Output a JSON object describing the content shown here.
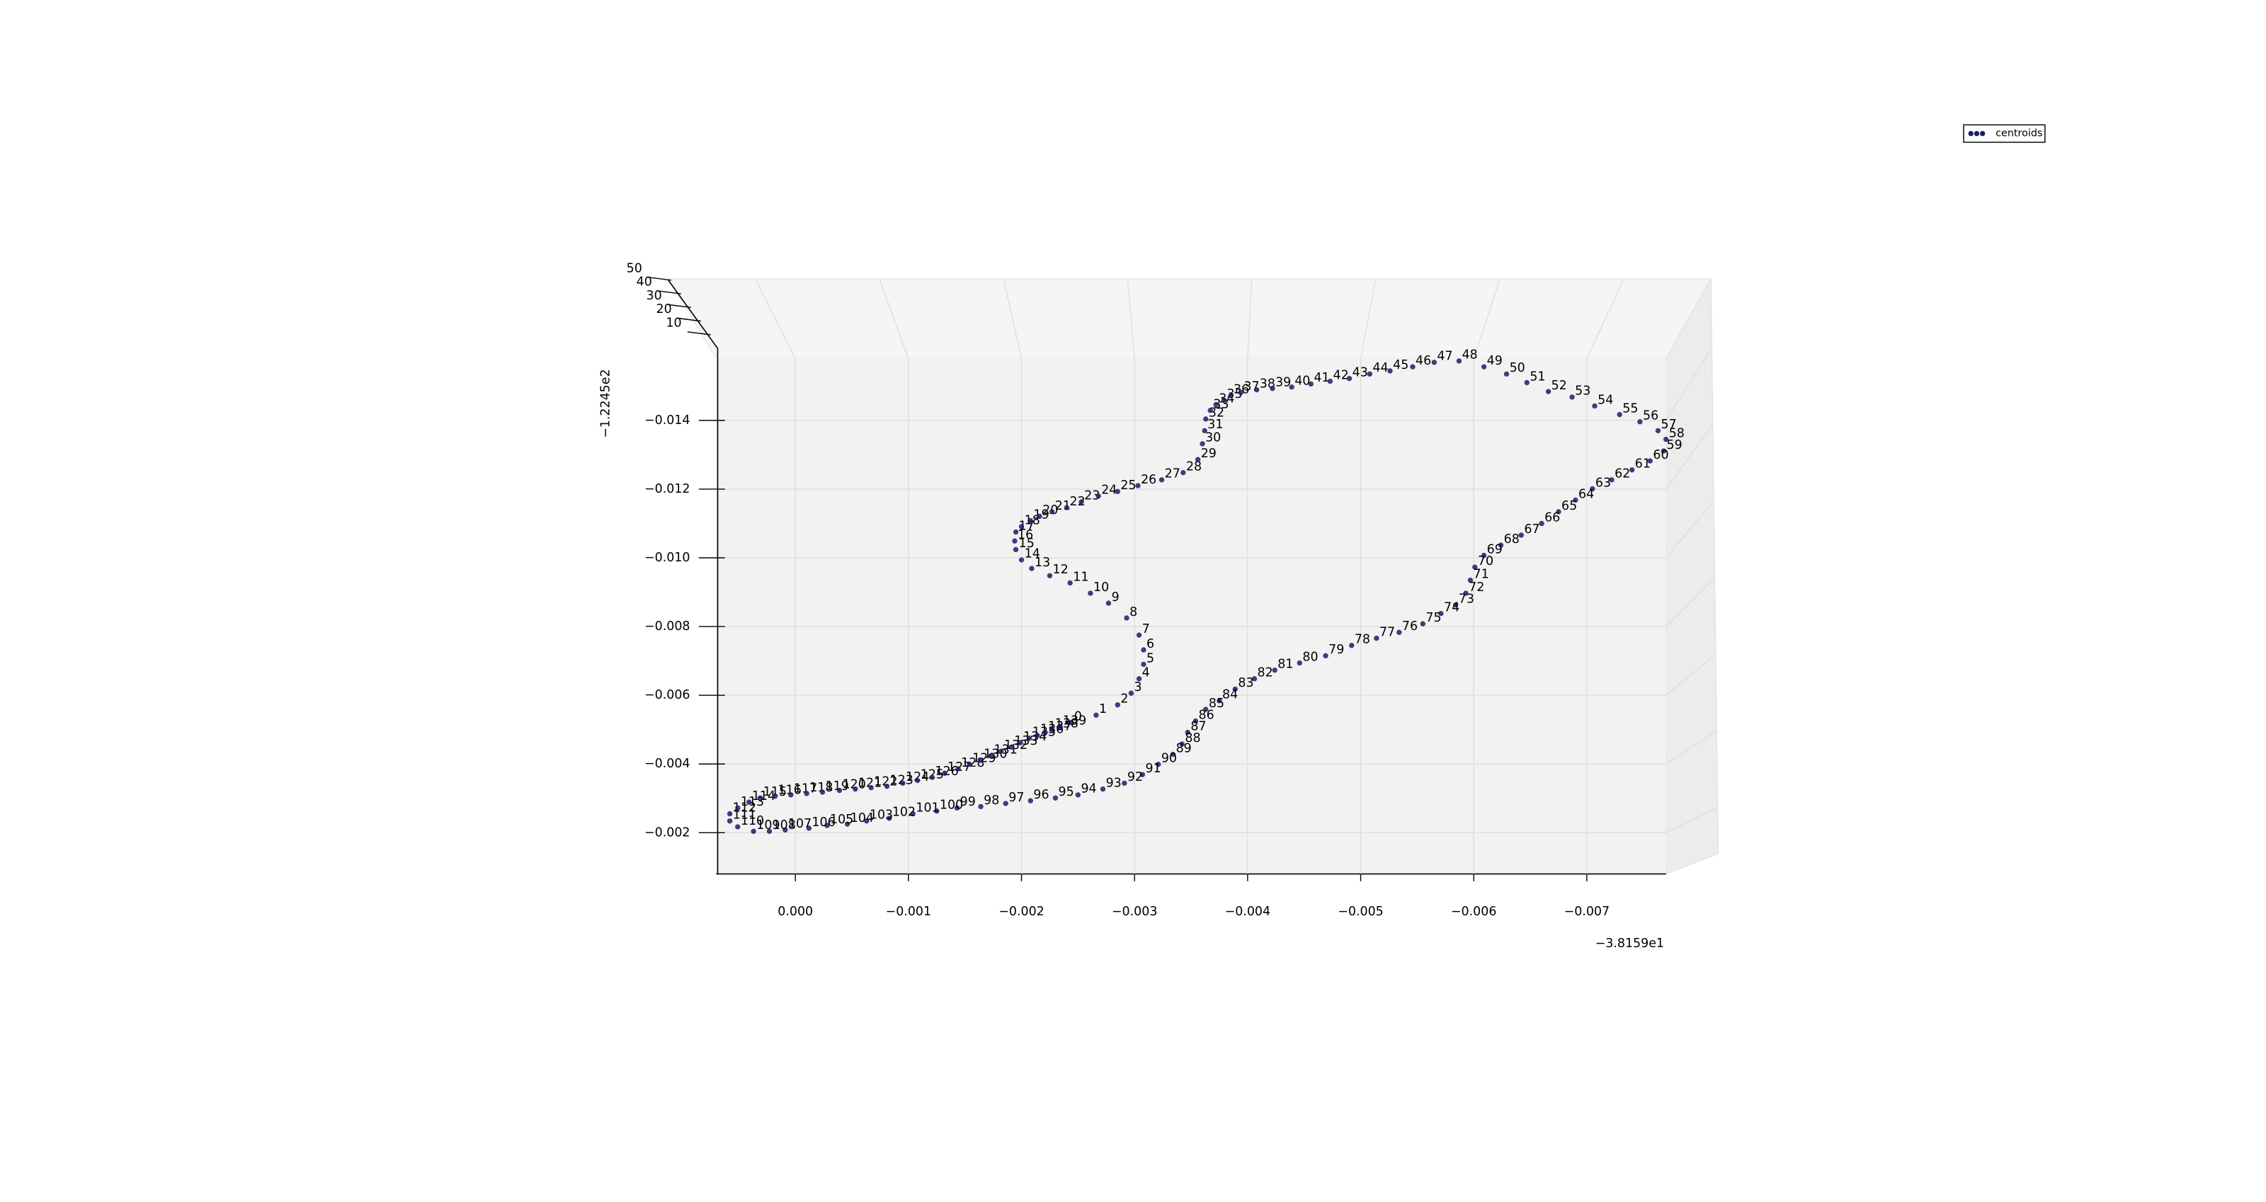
{
  "chart_data": {
    "type": "scatter3d",
    "x_offset_label": "−3.8159e1",
    "y_offset_label": "−1.2245e2",
    "xlim": [
      0.0007,
      -0.0077
    ],
    "ylim": [
      -0.0008,
      -0.0158
    ],
    "zlim": [
      0,
      50
    ],
    "xticks": [
      {
        "value": 0,
        "label": "0.000"
      },
      {
        "value": -0.001,
        "label": "−0.001"
      },
      {
        "value": -0.002,
        "label": "−0.002"
      },
      {
        "value": -0.003,
        "label": "−0.003"
      },
      {
        "value": -0.004,
        "label": "−0.004"
      },
      {
        "value": -0.005,
        "label": "−0.005"
      },
      {
        "value": -0.006,
        "label": "−0.006"
      },
      {
        "value": -0.007,
        "label": "−0.007"
      }
    ],
    "yticks": [
      {
        "value": -0.002,
        "label": "−0.002"
      },
      {
        "value": -0.004,
        "label": "−0.004"
      },
      {
        "value": -0.006,
        "label": "−0.006"
      },
      {
        "value": -0.008,
        "label": "−0.008"
      },
      {
        "value": -0.01,
        "label": "−0.010"
      },
      {
        "value": -0.012,
        "label": "−0.012"
      },
      {
        "value": -0.014,
        "label": "−0.014"
      }
    ],
    "zticks": [
      10,
      20,
      30,
      40,
      50
    ],
    "grid": true,
    "legend": "upper right",
    "series": [
      {
        "name": "centroids",
        "color": "#1c1c6b",
        "x": [
          -0.00244,
          -0.00266,
          -0.00285,
          -0.00297,
          -0.00304,
          -0.00308,
          -0.00308,
          -0.00304,
          -0.00293,
          -0.00277,
          -0.00261,
          -0.00243,
          -0.00225,
          -0.00209,
          -0.002,
          -0.00195,
          -0.00194,
          -0.00195,
          -0.002,
          -0.00208,
          -0.00216,
          -0.00227,
          -0.0024,
          -0.00253,
          -0.00268,
          -0.00285,
          -0.00303,
          -0.00324,
          -0.00343,
          -0.00356,
          -0.0036,
          -0.00362,
          -0.00363,
          -0.00367,
          -0.00372,
          -0.00379,
          -0.00385,
          -0.00394,
          -0.00408,
          -0.00422,
          -0.00439,
          -0.00456,
          -0.00473,
          -0.0049,
          -0.00508,
          -0.00526,
          -0.00546,
          -0.00565,
          -0.00587,
          -0.00609,
          -0.00629,
          -0.00647,
          -0.00666,
          -0.00687,
          -0.00707,
          -0.00729,
          -0.00747,
          -0.00763,
          -0.0077,
          -0.00768,
          -0.00756,
          -0.0074,
          -0.00722,
          -0.00705,
          -0.0069,
          -0.00675,
          -0.0066,
          -0.00642,
          -0.00624,
          -0.00609,
          -0.00601,
          -0.00597,
          -0.00593,
          -0.00584,
          -0.00571,
          -0.00555,
          -0.00534,
          -0.00514,
          -0.00492,
          -0.00469,
          -0.00446,
          -0.00424,
          -0.00406,
          -0.00389,
          -0.00375,
          -0.00363,
          -0.00354,
          -0.00347,
          -0.00342,
          -0.00334,
          -0.00321,
          -0.00307,
          -0.00291,
          -0.00272,
          -0.0025,
          -0.0023,
          -0.00208,
          -0.00186,
          -0.00164,
          -0.00143,
          -0.00125,
          -0.00104,
          -0.00083,
          -0.00063,
          -0.00046,
          -0.00028,
          -0.00012,
          9e-05,
          0.00023,
          0.00037,
          0.00051,
          0.00058,
          0.00058,
          0.00051,
          0.00041,
          0.00031,
          0.00018,
          4e-05,
          -0.0001,
          -0.00024,
          -0.00039,
          -0.00053,
          -0.00067,
          -0.00081,
          -0.00095,
          -0.00108,
          -0.00121,
          -0.00132,
          -0.00144,
          -0.00154,
          -0.00164,
          -0.00173,
          -0.00182,
          -0.00191,
          -0.00199,
          -0.00207,
          -0.00214,
          -0.00221,
          -0.00227,
          -0.00234
        ],
        "y": [
          -0.00521,
          -0.00542,
          -0.00572,
          -0.00606,
          -0.00648,
          -0.0069,
          -0.00732,
          -0.00775,
          -0.00825,
          -0.00868,
          -0.00897,
          -0.00927,
          -0.00948,
          -0.00969,
          -0.00994,
          -0.01024,
          -0.01049,
          -0.01075,
          -0.01091,
          -0.01108,
          -0.01121,
          -0.01134,
          -0.01146,
          -0.01163,
          -0.0118,
          -0.01193,
          -0.0121,
          -0.01227,
          -0.01248,
          -0.01286,
          -0.01332,
          -0.0137,
          -0.01404,
          -0.01429,
          -0.01446,
          -0.01459,
          -0.01472,
          -0.01481,
          -0.01489,
          -0.01493,
          -0.01497,
          -0.01506,
          -0.01514,
          -0.01522,
          -0.01535,
          -0.01544,
          -0.01556,
          -0.01569,
          -0.01573,
          -0.01556,
          -0.01535,
          -0.0151,
          -0.01484,
          -0.01468,
          -0.01442,
          -0.01417,
          -0.01396,
          -0.0137,
          -0.01345,
          -0.01311,
          -0.01282,
          -0.01256,
          -0.01227,
          -0.01201,
          -0.01168,
          -0.01134,
          -0.011,
          -0.01066,
          -0.01037,
          -0.01007,
          -0.00973,
          -0.00935,
          -0.00897,
          -0.00863,
          -0.00838,
          -0.00808,
          -0.00783,
          -0.00766,
          -0.00745,
          -0.00715,
          -0.00694,
          -0.00673,
          -0.00648,
          -0.00618,
          -0.00584,
          -0.00559,
          -0.00525,
          -0.00492,
          -0.00458,
          -0.00428,
          -0.00399,
          -0.00369,
          -0.00344,
          -0.00327,
          -0.0031,
          -0.00301,
          -0.00293,
          -0.00285,
          -0.00276,
          -0.00272,
          -0.00263,
          -0.00255,
          -0.00242,
          -0.00234,
          -0.00225,
          -0.00221,
          -0.00213,
          -0.00208,
          -0.00204,
          -0.00204,
          -0.00217,
          -0.00234,
          -0.00255,
          -0.00272,
          -0.00289,
          -0.00301,
          -0.00306,
          -0.0031,
          -0.00314,
          -0.00318,
          -0.00323,
          -0.00327,
          -0.00331,
          -0.00335,
          -0.00344,
          -0.00352,
          -0.00361,
          -0.00373,
          -0.00386,
          -0.00399,
          -0.00411,
          -0.00424,
          -0.00437,
          -0.00449,
          -0.00462,
          -0.00475,
          -0.00483,
          -0.00492,
          -0.005,
          -0.00508
        ],
        "point_labels": [
          0,
          1,
          2,
          3,
          4,
          5,
          6,
          7,
          8,
          9,
          10,
          11,
          12,
          13,
          14,
          15,
          16,
          17,
          18,
          19,
          20,
          21,
          22,
          23,
          24,
          25,
          26,
          27,
          28,
          29,
          30,
          31,
          32,
          33,
          34,
          35,
          36,
          37,
          38,
          39,
          40,
          41,
          42,
          43,
          44,
          45,
          46,
          47,
          48,
          49,
          50,
          51,
          52,
          53,
          54,
          55,
          56,
          57,
          58,
          59,
          60,
          61,
          62,
          63,
          64,
          65,
          66,
          67,
          68,
          69,
          70,
          71,
          72,
          73,
          74,
          75,
          76,
          77,
          78,
          79,
          80,
          81,
          82,
          83,
          84,
          85,
          86,
          87,
          88,
          89,
          90,
          91,
          92,
          93,
          94,
          95,
          96,
          97,
          98,
          99,
          100,
          101,
          102,
          103,
          104,
          105,
          106,
          107,
          108,
          109,
          110,
          111,
          112,
          113,
          114,
          115,
          116,
          117,
          118,
          119,
          120,
          121,
          122,
          123,
          124,
          125,
          126,
          127,
          128,
          129,
          130,
          131,
          132,
          133,
          134,
          135,
          136,
          137,
          138,
          139
        ]
      }
    ]
  }
}
